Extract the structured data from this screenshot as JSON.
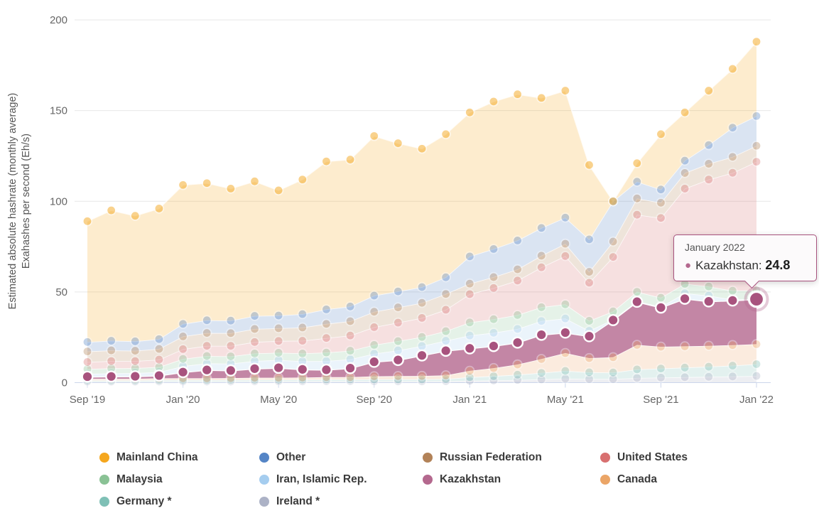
{
  "chart_data": {
    "type": "area",
    "stacking": "normal",
    "highlighted_series": "Kazakhstan",
    "ylabel_line1": "Estimated absolute hashrate (monthly average)",
    "ylabel_line2": "Exahashes per second (Eh/s)",
    "ylim": [
      0,
      200
    ],
    "yticks": [
      "0",
      "50",
      "100",
      "150",
      "200"
    ],
    "ytick_values": [
      0,
      50,
      100,
      150,
      200
    ],
    "xtick_labels": [
      "Sep '19",
      "Jan '20",
      "May '20",
      "Sep '20",
      "Jan '21",
      "May '21",
      "Sep '21",
      "Jan '22"
    ],
    "xtick_month_indices": [
      0,
      4,
      8,
      12,
      16,
      20,
      24,
      28
    ],
    "grid": true,
    "legend_position": "bottom",
    "months": [
      "Sep 2019",
      "Oct 2019",
      "Nov 2019",
      "Dec 2019",
      "Jan 2020",
      "Feb 2020",
      "Mar 2020",
      "Apr 2020",
      "May 2020",
      "Jun 2020",
      "Jul 2020",
      "Aug 2020",
      "Sep 2020",
      "Oct 2020",
      "Nov 2020",
      "Dec 2020",
      "Jan 2021",
      "Feb 2021",
      "Mar 2021",
      "Apr 2021",
      "May 2021",
      "Jun 2021",
      "Jul 2021",
      "Aug 2021",
      "Sep 2021",
      "Oct 2021",
      "Nov 2021",
      "Dec 2021",
      "Jan 2022"
    ],
    "series": [
      {
        "name": "Ireland *",
        "color": "#ACB2C6",
        "marker_color": "#ACB2C6",
        "values": [
          0.5,
          0.5,
          0.5,
          0.6,
          0.6,
          0.6,
          0.6,
          0.7,
          0.7,
          0.7,
          0.8,
          0.8,
          0.7,
          0.7,
          0.7,
          0.8,
          1.0,
          1.2,
          1.5,
          1.8,
          2.2,
          2.0,
          2.0,
          2.6,
          2.8,
          3.0,
          3.2,
          3.4,
          3.7
        ]
      },
      {
        "name": "Germany *",
        "color": "#7FC0B6",
        "marker_color": "#7FC0B6",
        "values": [
          0.7,
          0.7,
          0.7,
          0.8,
          0.8,
          0.8,
          0.9,
          0.9,
          0.9,
          1.0,
          1.0,
          1.0,
          1.1,
          1.1,
          1.1,
          1.2,
          2.0,
          2.4,
          2.9,
          3.6,
          4.3,
          3.7,
          3.6,
          4.7,
          5.0,
          5.3,
          5.6,
          6.0,
          6.5
        ]
      },
      {
        "name": "Canada",
        "color": "#EBA567",
        "marker_color": "#EBA567",
        "values": [
          0.9,
          0.9,
          0.9,
          1.0,
          1.0,
          1.0,
          1.0,
          1.1,
          1.1,
          1.1,
          1.2,
          1.2,
          1.7,
          1.8,
          1.9,
          2.0,
          3.5,
          4.4,
          5.6,
          7.6,
          9.8,
          7.8,
          8.4,
          13.5,
          12.0,
          11.7,
          11.5,
          11.3,
          11.0
        ]
      },
      {
        "name": "Kazakhstan",
        "color": "#B4688E",
        "marker_color": "#A8537E",
        "values": [
          1.2,
          1.3,
          1.4,
          1.5,
          3.4,
          4.6,
          4.2,
          5.0,
          5.5,
          4.5,
          4.1,
          5.0,
          8.0,
          8.9,
          11.3,
          13.6,
          12.4,
          12.2,
          12.1,
          13.4,
          11.3,
          12.1,
          20.5,
          23.8,
          21.6,
          26.3,
          24.5,
          24.6,
          24.8
        ]
      },
      {
        "name": "Iran, Islamic Rep.",
        "color": "#A5CDEF",
        "marker_color": "#A5CDEF",
        "values": [
          1.6,
          1.7,
          1.8,
          1.9,
          3.3,
          3.6,
          3.8,
          4.2,
          4.3,
          4.5,
          4.8,
          4.9,
          4.5,
          5.3,
          5.2,
          5.5,
          7.1,
          7.3,
          7.5,
          7.6,
          7.8,
          3.0,
          0.3,
          0.3,
          0.4,
          3.0,
          3.2,
          0.5,
          0.2
        ]
      },
      {
        "name": "Malaysia",
        "color": "#8AC295",
        "marker_color": "#8AC295",
        "values": [
          2.6,
          2.8,
          2.7,
          2.8,
          4.0,
          4.1,
          4.0,
          4.2,
          4.0,
          4.3,
          4.7,
          4.7,
          4.8,
          5.1,
          5.0,
          5.3,
          7.2,
          7.5,
          7.7,
          7.6,
          7.8,
          5.5,
          4.5,
          5.2,
          5.0,
          5.2,
          5.0,
          4.9,
          4.7
        ]
      },
      {
        "name": "United States",
        "color": "#D87070",
        "marker_color": "#D87070",
        "values": [
          3.9,
          4.0,
          3.9,
          4.1,
          5.4,
          5.6,
          5.8,
          6.3,
          6.5,
          7.0,
          8.0,
          8.4,
          9.8,
          10.2,
          10.5,
          11.8,
          15.6,
          17.2,
          19.0,
          22.0,
          26.6,
          21.0,
          30.0,
          42.5,
          44.0,
          52.5,
          59.0,
          65.0,
          70.9
        ]
      },
      {
        "name": "Russian Federation",
        "color": "#B28258",
        "marker_color": "#B28258",
        "values": [
          5.8,
          5.9,
          5.7,
          5.9,
          7.0,
          7.1,
          7.0,
          7.2,
          7.0,
          7.3,
          7.8,
          7.9,
          8.5,
          8.4,
          8.3,
          8.7,
          5.8,
          6.0,
          6.2,
          6.4,
          6.8,
          6.0,
          8.5,
          9.0,
          8.4,
          8.6,
          8.7,
          8.8,
          8.8
        ]
      },
      {
        "name": "Other",
        "color": "#5585C6",
        "marker_color": "#5585C6",
        "values": [
          5.2,
          5.3,
          5.2,
          5.4,
          6.9,
          7.0,
          6.9,
          7.2,
          7.0,
          7.4,
          8.0,
          8.1,
          8.9,
          8.8,
          8.7,
          9.2,
          15.0,
          15.5,
          15.9,
          15.3,
          14.4,
          17.9,
          22.2,
          9.2,
          7.3,
          6.8,
          10.3,
          16.1,
          16.4
        ]
      },
      {
        "name": "Mainland China",
        "color": "#F5A71E",
        "marker_color": "#F5A71E",
        "values": [
          66.6,
          71.9,
          69.2,
          72.0,
          76.6,
          75.6,
          72.8,
          74.2,
          69.0,
          74.2,
          81.6,
          81.0,
          88.0,
          81.7,
          76.3,
          78.9,
          79.4,
          81.3,
          80.6,
          71.7,
          70.0,
          41.0,
          0.0,
          10.2,
          30.5,
          26.6,
          30.0,
          32.4,
          41.0
        ]
      }
    ]
  },
  "legend": {
    "items": [
      {
        "label": "Mainland China",
        "color": "#F5A71E"
      },
      {
        "label": "Other",
        "color": "#5585C6"
      },
      {
        "label": "Russian Federation",
        "color": "#B28258"
      },
      {
        "label": "United States",
        "color": "#D87070"
      },
      {
        "label": "Malaysia",
        "color": "#8AC295"
      },
      {
        "label": "Iran, Islamic Rep.",
        "color": "#A5CDEF"
      },
      {
        "label": "Kazakhstan",
        "color": "#B4688E"
      },
      {
        "label": "Canada",
        "color": "#EBA567"
      },
      {
        "label": "Germany *",
        "color": "#7FC0B6"
      },
      {
        "label": "Ireland *",
        "color": "#ACB2C6"
      }
    ]
  },
  "tooltip": {
    "date": "January 2022",
    "series": "Kazakhstan",
    "separator": ": ",
    "value": "24.8",
    "dot": "●",
    "border_color": "#a8537e",
    "dot_color": "#b4688e",
    "month_index": 28
  },
  "colors": {
    "grid": "#e7e7e7",
    "axis_line": "#ccd6eb",
    "axis_text": "#666666",
    "background": "#ffffff"
  }
}
